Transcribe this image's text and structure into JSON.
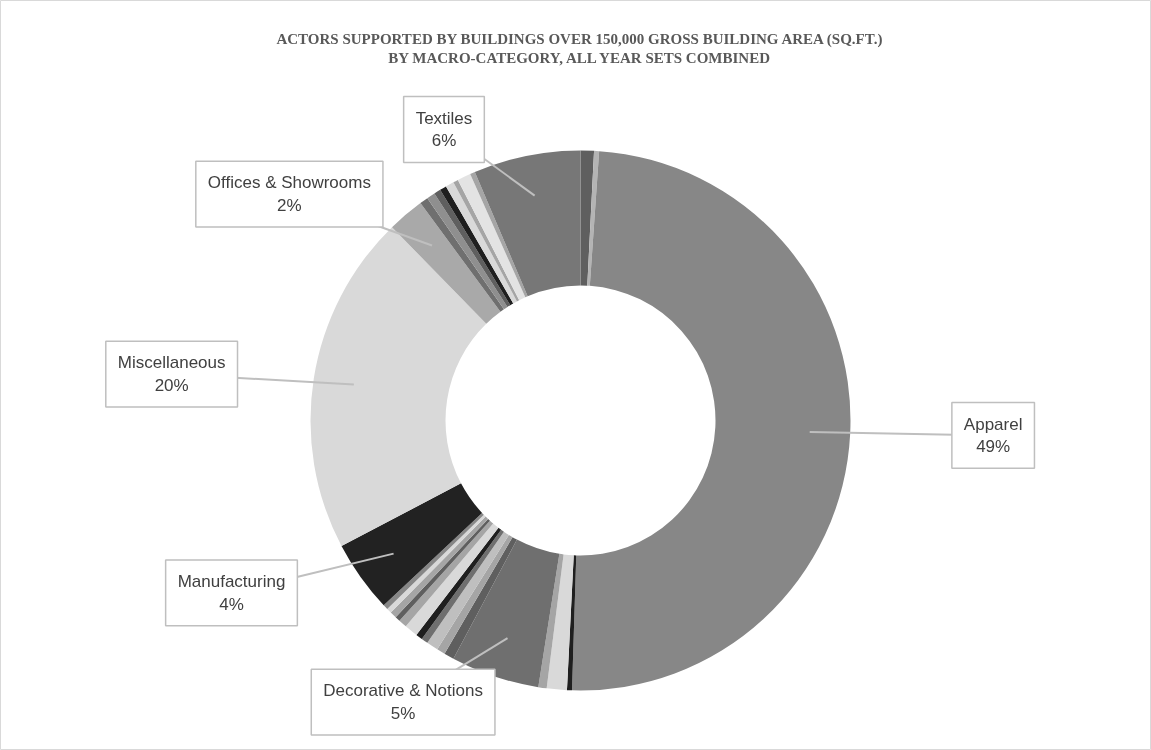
{
  "chart_data": {
    "type": "donut",
    "title": "ACTORS SUPPORTED BY BUILDINGS OVER 150,000 GROSS BUILDING AREA (SQ.FT.)\nBY MACRO-CATEGORY, ALL YEAR SETS COMBINED",
    "categories": [
      null,
      null,
      "Apparel",
      null,
      null,
      null,
      "Decorative & Notions",
      null,
      null,
      null,
      null,
      null,
      null,
      null,
      null,
      null,
      null,
      null,
      "Manufacturing",
      "Miscellaneous",
      "Offices & Showrooms",
      null,
      null,
      null,
      null,
      null,
      null,
      null,
      null,
      "Textiles"
    ],
    "values": [
      0.8,
      0.3,
      49.4,
      0.3,
      1.2,
      0.5,
      5.3,
      0.6,
      0.5,
      0.7,
      0.4,
      0.4,
      0.8,
      0.5,
      0.3,
      0.4,
      0.3,
      0.3,
      4.3,
      20.4,
      2.2,
      0.5,
      0.5,
      0.4,
      0.4,
      0.5,
      0.3,
      0.8,
      0.3,
      6.4
    ],
    "value_labels": [
      null,
      null,
      "49%",
      null,
      null,
      null,
      "5%",
      null,
      null,
      null,
      null,
      null,
      null,
      null,
      null,
      null,
      null,
      null,
      "4%",
      "20%",
      "2%",
      null,
      null,
      null,
      null,
      null,
      null,
      null,
      null,
      "6%"
    ],
    "colors": [
      "#5f5f5f",
      "#b4b4b4",
      "#878787",
      "#1f1f1f",
      "#d9d9d9",
      "#a5a5a5",
      "#6f6f6f",
      "#5f5f5f",
      "#a5a5a5",
      "#bfbfbf",
      "#6f6f6f",
      "#1f1f1f",
      "#d9d9d9",
      "#a5a5a5",
      "#5f5f5f",
      "#a5a5a5",
      "#d9d9d9",
      "#878787",
      "#222222",
      "#d9d9d9",
      "#a9a9a9",
      "#6f6f6f",
      "#8f8f8f",
      "#5f5f5f",
      "#1f1f1f",
      "#d9d9d9",
      "#a5a5a5",
      "#e3e3e3",
      "#a5a5a5",
      "#777777"
    ]
  }
}
